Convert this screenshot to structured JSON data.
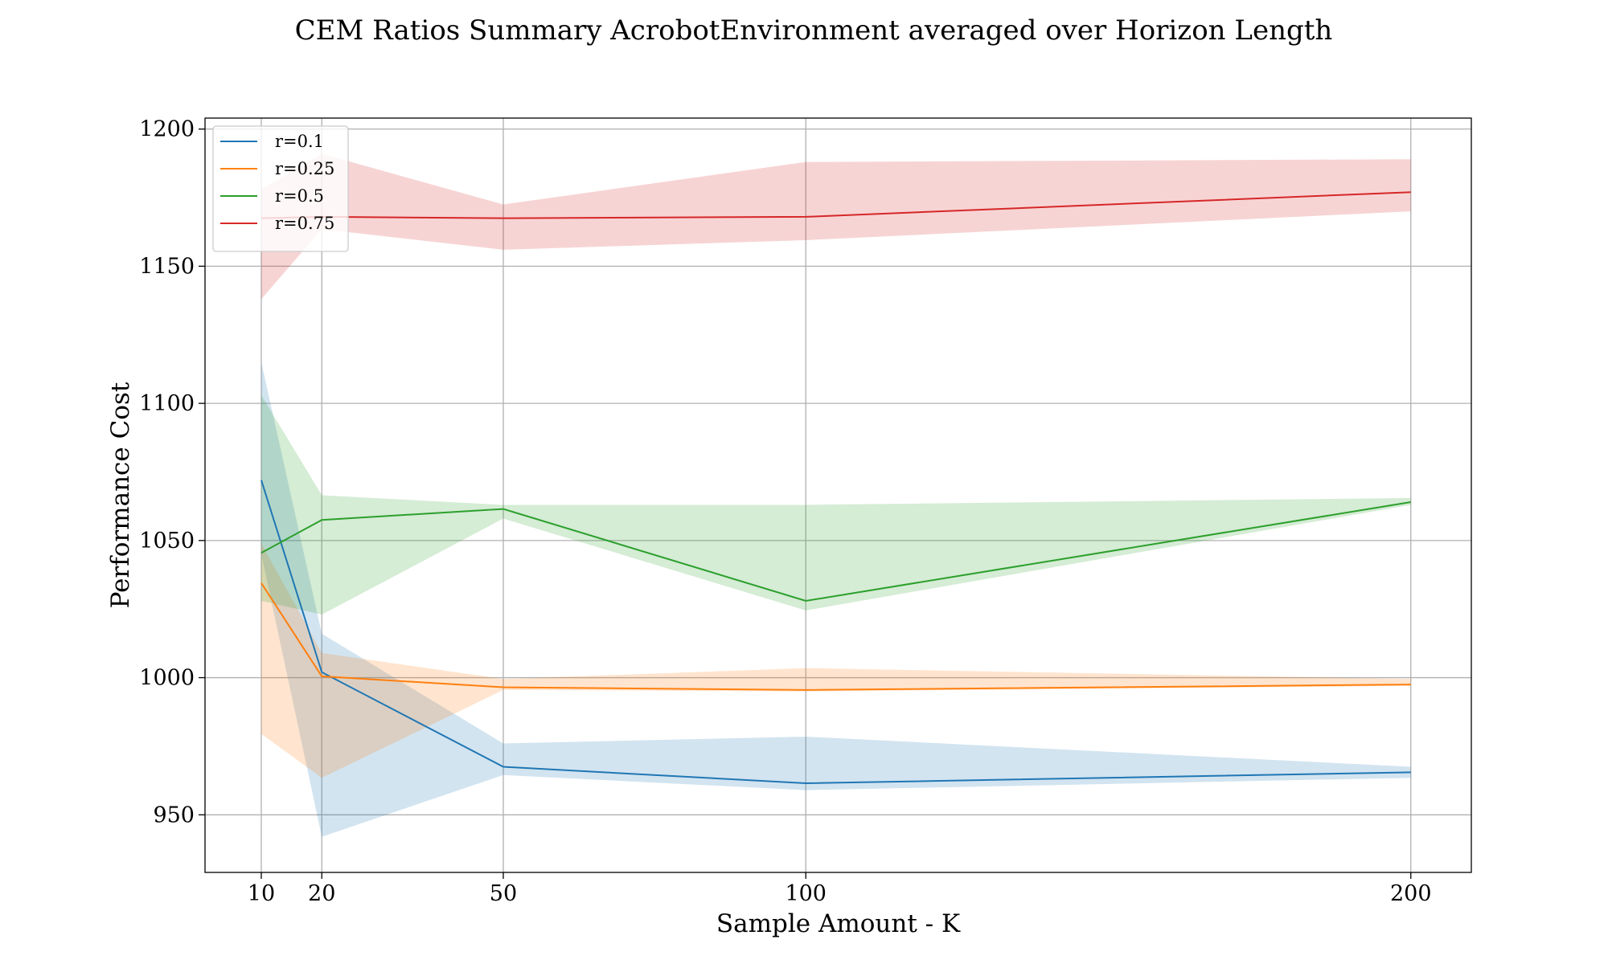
{
  "chart_data": {
    "type": "line",
    "title": "CEM Ratios Summary AcrobotEnvironment averaged over Horizon Length",
    "xlabel": "Sample Amount - K",
    "ylabel": "Performance Cost",
    "x": [
      10,
      20,
      50,
      100,
      200
    ],
    "x_ticks": [
      10,
      20,
      50,
      100,
      200
    ],
    "y_ticks": [
      950,
      1000,
      1050,
      1100,
      1150,
      1200
    ],
    "xlim": [
      0.7,
      210
    ],
    "ylim": [
      929,
      1204
    ],
    "grid": true,
    "legend_position": "top-left",
    "series": [
      {
        "name": "r=0.1",
        "color": "#1f77b4",
        "values": [
          1072,
          1002,
          967.5,
          961.5,
          965.5
        ],
        "lower": [
          1045,
          942,
          964.5,
          959,
          963.5
        ],
        "upper": [
          1115,
          1016,
          976,
          978.5,
          967.5
        ]
      },
      {
        "name": "r=0.25",
        "color": "#ff7f0e",
        "values": [
          1034.5,
          1000.5,
          996.5,
          995.5,
          997.5
        ],
        "lower": [
          979.5,
          963.5,
          995.5,
          995,
          997
        ],
        "upper": [
          1049,
          1009,
          999.5,
          1003.5,
          999.5
        ]
      },
      {
        "name": "r=0.5",
        "color": "#2ca02c",
        "values": [
          1045.5,
          1057.5,
          1061.5,
          1028,
          1064
        ],
        "lower": [
          1028,
          1023,
          1058,
          1024.5,
          1063
        ],
        "upper": [
          1103,
          1066.5,
          1063,
          1063,
          1065.5
        ]
      },
      {
        "name": "r=0.75",
        "color": "#d62728",
        "values": [
          1167.5,
          1168,
          1167.5,
          1168,
          1177
        ],
        "lower": [
          1138,
          1163.5,
          1156,
          1159.5,
          1170
        ],
        "upper": [
          1178,
          1191,
          1172.5,
          1188,
          1189
        ]
      }
    ]
  }
}
